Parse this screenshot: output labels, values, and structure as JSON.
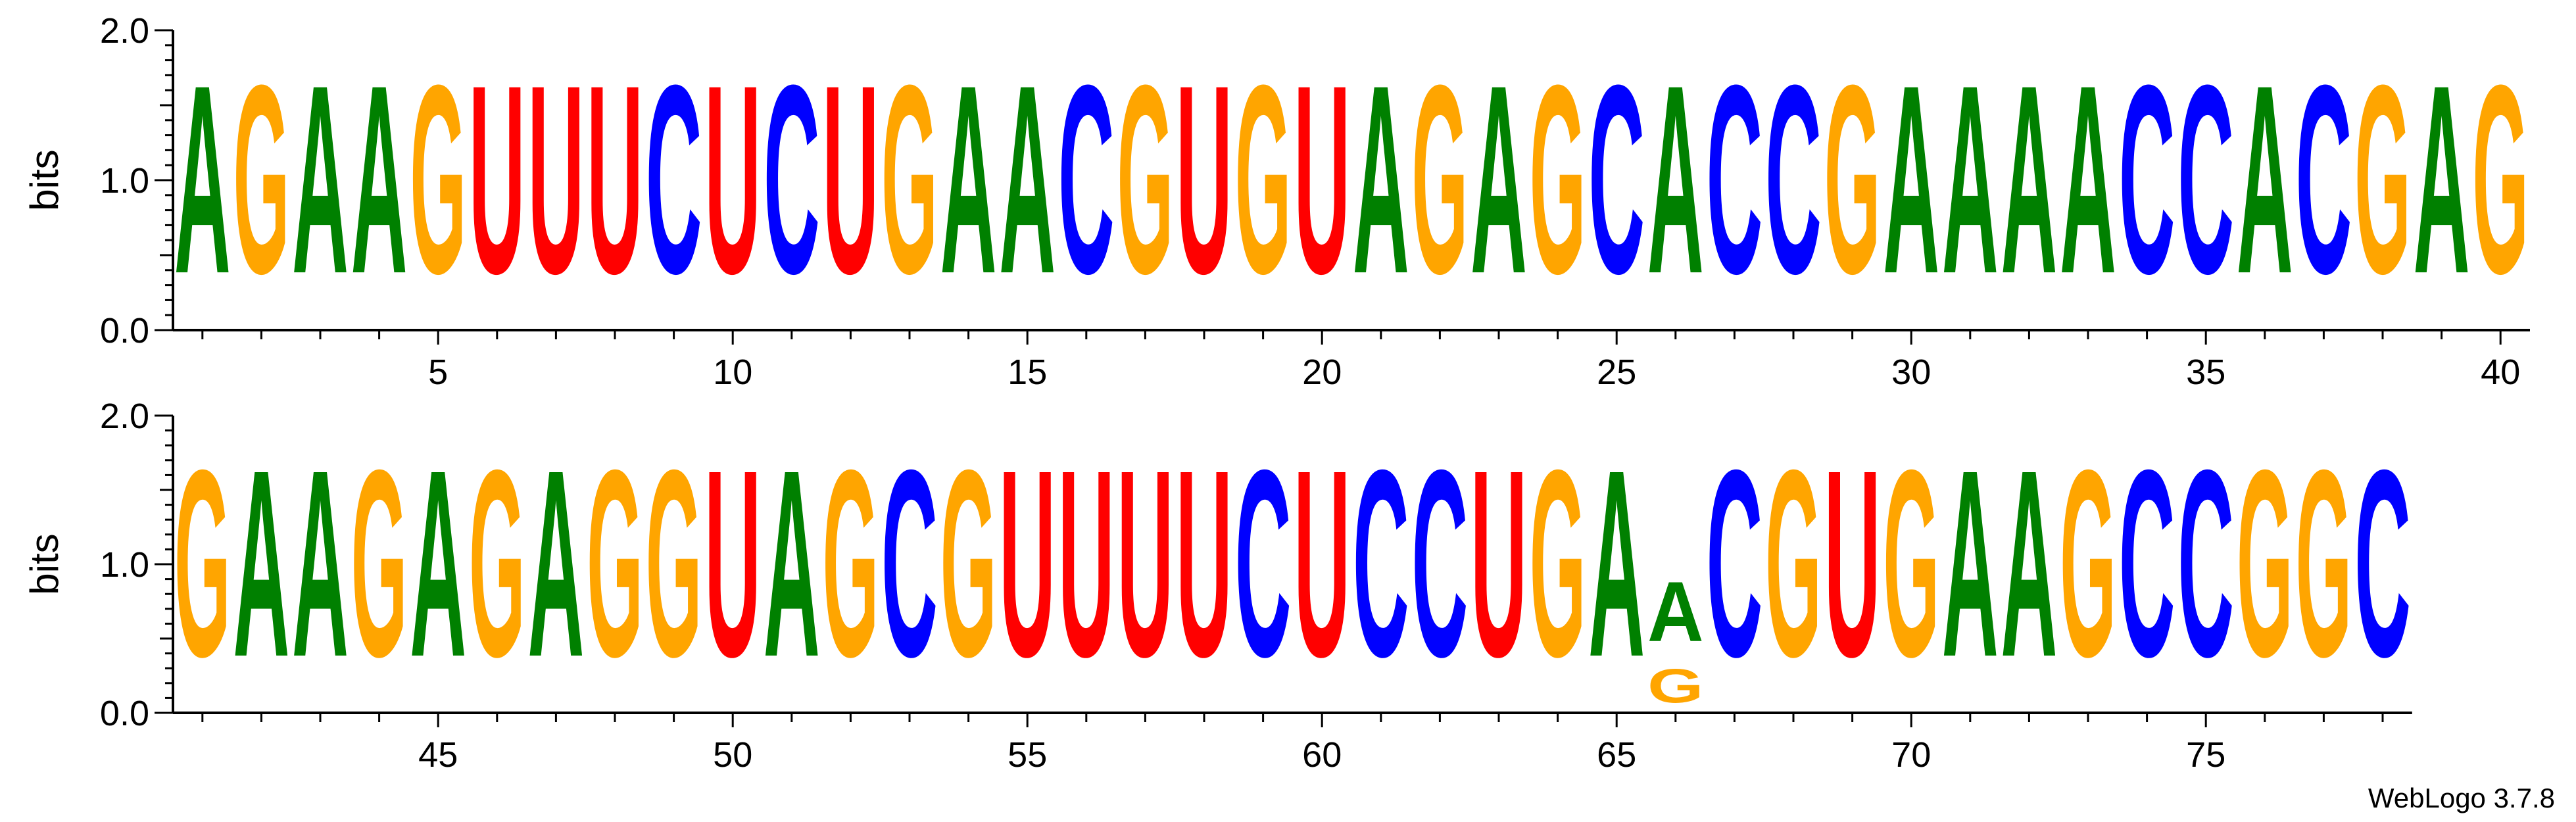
{
  "chart_data": {
    "type": "sequence-logo",
    "alphabet": "RNA",
    "ylabel": "bits",
    "ylim": [
      0,
      2
    ],
    "yticks": [
      "0.0",
      "1.0",
      "2.0"
    ],
    "xtick_step": 5,
    "colors": {
      "A": "#008000",
      "C": "#0000ff",
      "G": "#ffa500",
      "U": "#ff0000"
    },
    "rows": [
      {
        "start": 1,
        "end": 40,
        "consensus": "AGAAGUUUCUCUGAACGUGUAGAGCACCGAAAACCACGAG"
      },
      {
        "start": 41,
        "end": 78,
        "consensus": "GAAGAGAGGUAGCGUUUUCUCCUGAACGUGAAGCCGGC"
      }
    ],
    "special_positions": [
      {
        "position": 66,
        "letters": [
          {
            "letter": "G",
            "bits": 0.36
          },
          {
            "letter": "A",
            "bits": 0.64
          }
        ]
      }
    ],
    "version_label": "WebLogo 3.7.8"
  }
}
